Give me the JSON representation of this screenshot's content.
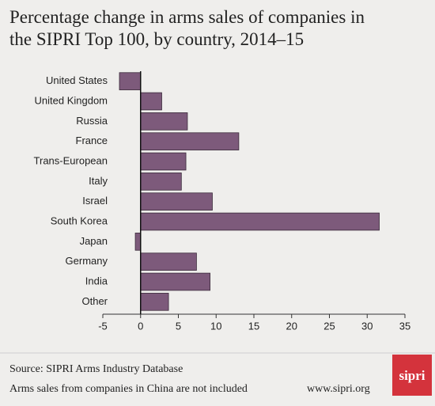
{
  "chart_data": {
    "type": "hbar",
    "title": "Percentage change in arms sales of companies in the SIPRI Top 100, by country, 2014–15",
    "categories": [
      "United States",
      "United Kingdom",
      "Russia",
      "France",
      "Trans-European",
      "Italy",
      "Israel",
      "South Korea",
      "Japan",
      "Germany",
      "India",
      "Other"
    ],
    "values": [
      -2.8,
      2.8,
      6.2,
      13.0,
      6.0,
      5.4,
      9.5,
      31.6,
      -0.7,
      7.4,
      9.2,
      3.7
    ],
    "color": "#7d5a7b",
    "xlim": [
      -5,
      35
    ],
    "xticks": [
      -5,
      0,
      5,
      10,
      15,
      20,
      25,
      30,
      35
    ],
    "grid": false
  },
  "footer": {
    "source": "Source: SIPRI Arms Industry Database",
    "note": "Arms sales from companies in China are not included",
    "url": "www.sipri.org",
    "logo": "sipri"
  }
}
